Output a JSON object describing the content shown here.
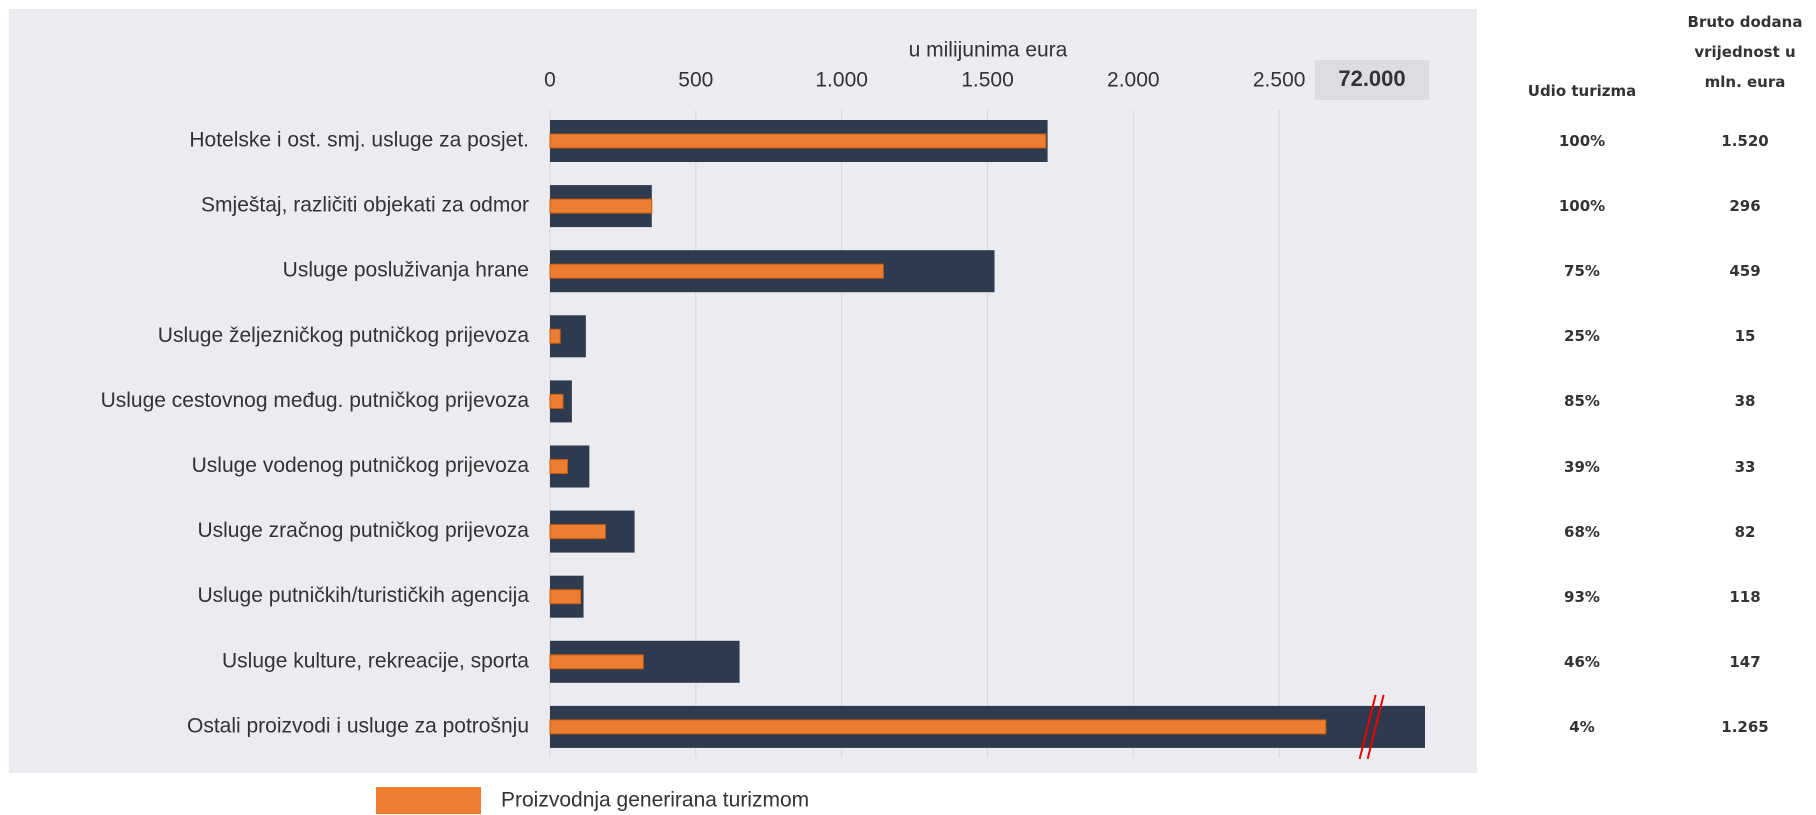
{
  "chart_data": {
    "type": "bar",
    "orientation": "horizontal",
    "axis_title": "u milijunima eura",
    "categories": [
      "Hotelske i ost. smj. usluge za  posjet.",
      "Smještaj, različiti objekati za odmor",
      "Usluge posluživanja hrane",
      "Usluge željezničkog putničkog prijevoza",
      "Usluge cestovnog međug. putničkog prijevoza",
      "Usluge vodenog putničkog prijevoza",
      "Usluge zračnog putničkog prijevoza",
      "Usluge putničkih/turističkih agencija",
      "Usluge kulture, rekreacije, sporta",
      "Ostali proizvodi i usluge za potrošnju"
    ],
    "series": [
      {
        "color": "#2e3a4e",
        "values": [
          1706,
          349,
          1524,
          123,
          75,
          135,
          290,
          115,
          650,
          72000
        ]
      },
      {
        "name": "Proizvodnja generirana turizmom",
        "color": "#ed7d31",
        "values": [
          1700,
          349,
          1143,
          35,
          45,
          60,
          190,
          105,
          320,
          2660
        ]
      }
    ],
    "xlim": [
      0,
      72000
    ],
    "xbreak": 2800,
    "xticks": [
      0,
      500,
      {
        "value": 1000,
        "label": "1.000"
      },
      {
        "value": 1500,
        "label": "1.500"
      },
      {
        "value": 2000,
        "label": "2.000"
      },
      {
        "value": 2500,
        "label": "2.500"
      },
      {
        "value": 72000,
        "label": "72.000"
      }
    ],
    "grid": true,
    "legend": "bottom"
  },
  "table": {
    "headers": [
      "Udio turizma",
      "Bruto dodana vrijednost u mln. eura"
    ],
    "rows": [
      [
        "100%",
        "1.520"
      ],
      [
        "100%",
        "296"
      ],
      [
        "75%",
        "459"
      ],
      [
        "25%",
        "15"
      ],
      [
        "85%",
        "38"
      ],
      [
        "39%",
        "33"
      ],
      [
        "68%",
        "82"
      ],
      [
        "93%",
        "118"
      ],
      [
        "46%",
        "147"
      ],
      [
        "4%",
        "1.265"
      ]
    ]
  }
}
